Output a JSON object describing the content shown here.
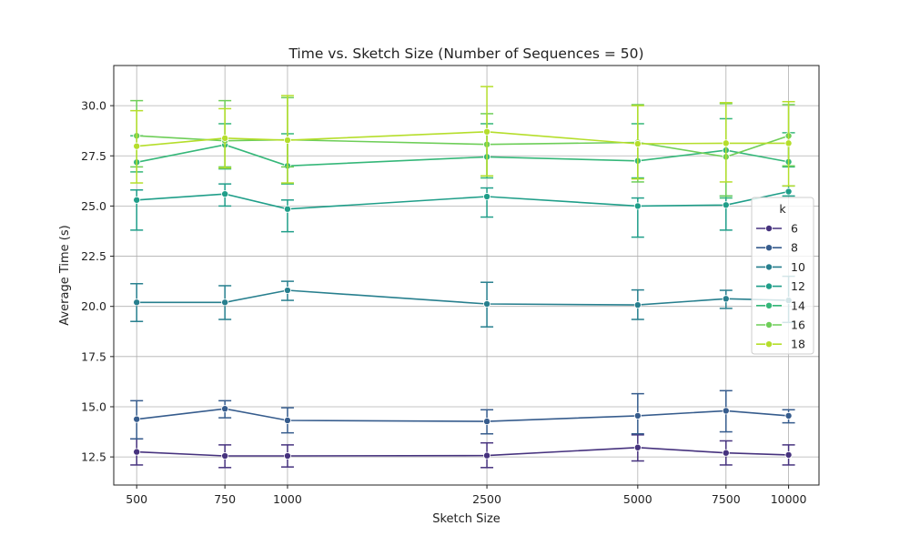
{
  "chart_data": {
    "type": "line",
    "title": "Time vs. Sketch Size (Number of Sequences = 50)",
    "xlabel": "Sketch Size",
    "ylabel": "Average Time (s)",
    "x": [
      500,
      750,
      1000,
      2500,
      5000,
      7500,
      10000
    ],
    "x_tick_labels": [
      "500",
      "750",
      "1000",
      "2500",
      "5000",
      "7500",
      "10000"
    ],
    "y_ticks": [
      12.5,
      15.0,
      17.5,
      20.0,
      22.5,
      25.0,
      27.5,
      30.0
    ],
    "y_tick_labels": [
      "12.5",
      "15.0",
      "17.5",
      "20.0",
      "22.5",
      "25.0",
      "27.5",
      "30.0"
    ],
    "ylim": [
      11.1,
      32.0
    ],
    "grid": true,
    "legend": {
      "title": "k",
      "placement": "right"
    },
    "series": [
      {
        "name": "6",
        "color": "#46327e",
        "values": [
          12.75,
          12.55,
          12.55,
          12.57,
          12.97,
          12.7,
          12.6
        ],
        "err_low": [
          12.1,
          11.97,
          12.0,
          11.97,
          12.3,
          12.1,
          12.1
        ],
        "err_high": [
          13.4,
          13.1,
          13.1,
          13.2,
          13.6,
          13.3,
          13.1
        ]
      },
      {
        "name": "8",
        "color": "#365c8d",
        "values": [
          14.38,
          14.9,
          14.32,
          14.27,
          14.55,
          14.8,
          14.55
        ],
        "err_low": [
          13.4,
          14.45,
          13.7,
          13.65,
          13.65,
          13.75,
          14.2
        ],
        "err_high": [
          15.3,
          15.3,
          14.95,
          14.85,
          15.65,
          15.8,
          14.85
        ]
      },
      {
        "name": "10",
        "color": "#277f8e",
        "values": [
          20.2,
          20.2,
          20.8,
          20.12,
          20.07,
          20.38,
          20.3
        ],
        "err_low": [
          19.25,
          19.35,
          20.3,
          18.98,
          19.35,
          19.9,
          19.2
        ],
        "err_high": [
          21.13,
          21.03,
          21.25,
          21.2,
          20.82,
          20.8,
          21.5
        ]
      },
      {
        "name": "12",
        "color": "#1f9e89",
        "values": [
          25.3,
          25.6,
          24.85,
          25.47,
          25.0,
          25.05,
          25.72
        ],
        "err_low": [
          23.8,
          25.0,
          23.72,
          24.45,
          23.45,
          23.8,
          25.5
        ],
        "err_high": [
          25.8,
          26.1,
          25.3,
          25.9,
          25.4,
          25.5,
          26.0
        ]
      },
      {
        "name": "14",
        "color": "#35b779",
        "values": [
          27.18,
          28.05,
          27.0,
          27.45,
          27.25,
          27.78,
          27.2
        ],
        "err_low": [
          26.7,
          26.85,
          26.1,
          26.4,
          26.4,
          25.4,
          26.95
        ],
        "err_high": [
          28.5,
          29.1,
          28.6,
          29.1,
          29.1,
          29.35,
          28.65
        ]
      },
      {
        "name": "16",
        "color": "#6ece58",
        "values": [
          28.5,
          28.25,
          28.3,
          28.07,
          28.17,
          27.45,
          28.5
        ],
        "err_low": [
          26.95,
          26.95,
          26.95,
          26.5,
          26.2,
          25.5,
          27.0
        ],
        "err_high": [
          30.25,
          30.25,
          30.4,
          29.6,
          30.05,
          30.1,
          30.05
        ]
      },
      {
        "name": "18",
        "color": "#b5de2b",
        "values": [
          27.98,
          28.38,
          28.28,
          28.7,
          28.1,
          28.13,
          28.13
        ],
        "err_low": [
          26.15,
          26.9,
          26.15,
          26.5,
          26.35,
          26.2,
          26.0
        ],
        "err_high": [
          29.75,
          29.85,
          30.5,
          30.95,
          30.0,
          30.15,
          30.2
        ]
      }
    ]
  }
}
